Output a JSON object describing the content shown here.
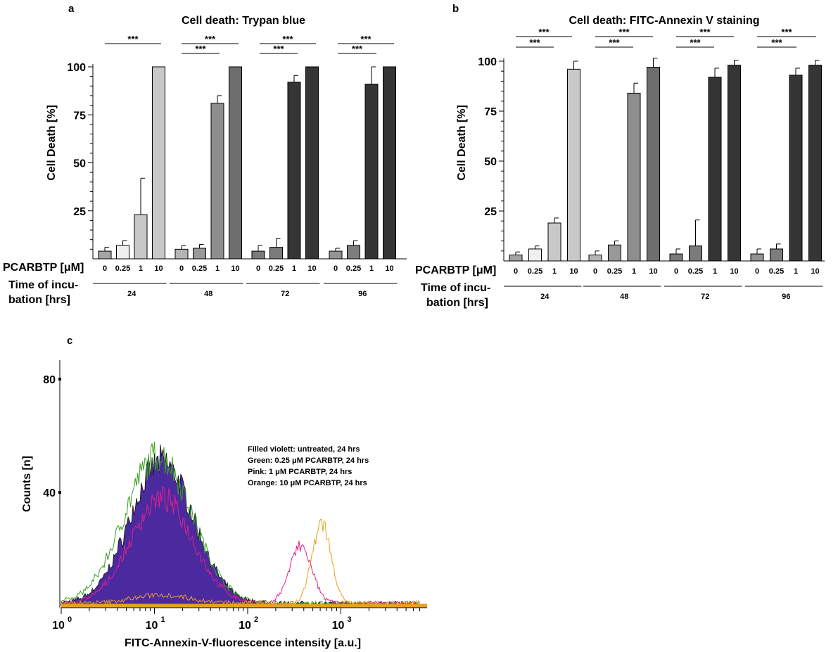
{
  "figure_panels": {
    "a": "a",
    "b": "b",
    "c": "c"
  },
  "chart_data": [
    {
      "id": "a",
      "type": "bar",
      "title": "Cell death: Trypan blue",
      "ylabel": "Cell Death [%]",
      "ylim": [
        0,
        100
      ],
      "yticks": [
        25,
        50,
        75,
        100
      ],
      "row_label_conc": "PCARBTP [μM]",
      "row_label_time": [
        "Time of incu-",
        "bation [hrs]"
      ],
      "categories": [
        "0",
        "0.25",
        "1",
        "10"
      ],
      "groups": [
        "24",
        "48",
        "72",
        "96"
      ],
      "series": [
        {
          "time": "24",
          "values": [
            4,
            7,
            23,
            100
          ],
          "errors": [
            2,
            2.5,
            19,
            0
          ],
          "colors": [
            "#a4a4a4",
            "#efefef",
            "#c8c8c8",
            "#c8c8c8"
          ]
        },
        {
          "time": "48",
          "values": [
            5,
            5.5,
            81,
            100
          ],
          "errors": [
            1.8,
            2,
            4,
            0
          ],
          "colors": [
            "#b4b4b4",
            "#999999",
            "#8e8e8e",
            "#6e6e6e"
          ]
        },
        {
          "time": "72",
          "values": [
            4,
            6,
            92,
            100
          ],
          "errors": [
            3,
            4.5,
            3.5,
            0
          ],
          "colors": [
            "#7a7a7a",
            "#7a7a7a",
            "#353535",
            "#353535"
          ]
        },
        {
          "time": "96",
          "values": [
            4,
            7,
            91,
            100
          ],
          "errors": [
            1.5,
            2.5,
            9,
            0
          ],
          "colors": [
            "#939393",
            "#7d7d7d",
            "#353535",
            "#353535"
          ]
        }
      ],
      "significance": [
        "***",
        "***",
        "***",
        "***",
        "***",
        "***",
        "***"
      ],
      "grid": false
    },
    {
      "id": "b",
      "type": "bar",
      "title": "Cell death: FITC-Annexin V staining",
      "ylabel": "Cell Death [%]",
      "ylim": [
        0,
        100
      ],
      "yticks": [
        25,
        50,
        75,
        100
      ],
      "row_label_conc": "PCARBTP [μM]",
      "row_label_time": [
        "Time of incu-",
        "bation [hrs]"
      ],
      "categories": [
        "0",
        "0.25",
        "1",
        "10"
      ],
      "groups": [
        "24",
        "48",
        "72",
        "96"
      ],
      "series": [
        {
          "time": "24",
          "values": [
            3,
            6,
            19,
            96
          ],
          "errors": [
            1.5,
            1.5,
            2.5,
            4
          ],
          "colors": [
            "#a4a4a4",
            "#efefef",
            "#c8c8c8",
            "#c8c8c8"
          ]
        },
        {
          "time": "48",
          "values": [
            3,
            8,
            84,
            97
          ],
          "errors": [
            2,
            2,
            5,
            4.5
          ],
          "colors": [
            "#b4b4b4",
            "#999999",
            "#8e8e8e",
            "#6e6e6e"
          ]
        },
        {
          "time": "72",
          "values": [
            3.5,
            7.5,
            92,
            98
          ],
          "errors": [
            2.5,
            13,
            4.5,
            2.5
          ],
          "colors": [
            "#7a7a7a",
            "#7a7a7a",
            "#353535",
            "#353535"
          ]
        },
        {
          "time": "96",
          "values": [
            3.5,
            6,
            93,
            98
          ],
          "errors": [
            2.5,
            2.5,
            3.5,
            2.5
          ],
          "colors": [
            "#939393",
            "#7d7d7d",
            "#353535",
            "#353535"
          ]
        }
      ],
      "significance": [
        "***",
        "***",
        "***",
        "***",
        "***",
        "***",
        "***",
        "***"
      ],
      "grid": false
    },
    {
      "id": "c",
      "type": "area",
      "xlabel": "FITC-Annexin-V-fluorescence intensity [a.u.]",
      "ylabel": "Counts [n]",
      "xscale": "log",
      "xlim": [
        1,
        7000
      ],
      "ylim": [
        0,
        87
      ],
      "yticks": [
        40,
        80
      ],
      "xticks": [
        {
          "base": "10",
          "exp": "0"
        },
        {
          "base": "10",
          "exp": "1"
        },
        {
          "base": "10",
          "exp": "2"
        },
        {
          "base": "10",
          "exp": "3"
        }
      ],
      "legend_lines": [
        "Filled violett: untreated, 24 hrs",
        "Green: 0.25 μM PCARBTP, 24 hrs",
        "Pink: 1 μM PCARBTP, 24 hrs",
        "Orange: 10 μM PCARBTP, 24 hrs"
      ],
      "series": [
        {
          "style": "filled",
          "color": "#4b2aa0",
          "peaks": [
            {
              "center": 12,
              "height": 50,
              "width": 0.34
            }
          ]
        },
        {
          "style": "line",
          "color": "#3aa020",
          "peaks": [
            {
              "center": 11,
              "height": 52,
              "width": 0.36
            }
          ]
        },
        {
          "style": "line",
          "color": "#e0208a",
          "peaks": [
            {
              "center": 12,
              "height": 37,
              "width": 0.33
            },
            {
              "center": 370,
              "height": 20,
              "width": 0.12
            }
          ]
        },
        {
          "style": "line",
          "color": "#e8a020",
          "peaks": [
            {
              "center": 12,
              "height": 3,
              "width": 0.3
            },
            {
              "center": 620,
              "height": 29,
              "width": 0.1
            }
          ]
        }
      ],
      "grid": false
    }
  ]
}
